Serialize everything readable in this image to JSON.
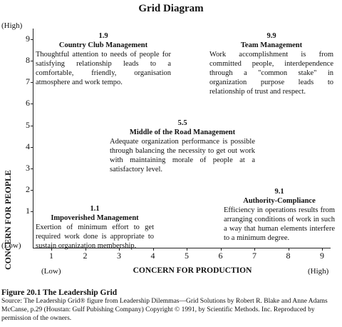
{
  "title": "Grid Diagram",
  "y_axis": {
    "label": "CONCERN FOR PEOPLE",
    "high": "(High)",
    "low": "(Low)",
    "ticks": [
      "1",
      "2",
      "3",
      "4",
      "5",
      "6",
      "7",
      "8",
      "9"
    ]
  },
  "x_axis": {
    "label": "CONCERN FOR PRODUCTION",
    "high": "(High)",
    "low": "(Low)",
    "ticks": [
      "1",
      "2",
      "3",
      "4",
      "5",
      "6",
      "7",
      "8",
      "9"
    ]
  },
  "styles": {
    "country_club": {
      "score": "1.9",
      "name": "Country Club Management",
      "description": "Thoughtful attention to needs of people for satisfying relationship leads to a comfortable, friendly, organisation atmosphere and work tempo."
    },
    "team": {
      "score": "9.9",
      "name": "Team Management",
      "description": "Work accomplishment is from committed people, interdependence through a \"common stake\" in organization purpose leads to relationship of trust and respect."
    },
    "middle": {
      "score": "5.5",
      "name": "Middle of the Road Management",
      "description": "Adequate organization performance is possible through balancing the necessity to get out work with maintaining morale of people at a satisfactory level."
    },
    "impoverished": {
      "score": "1.1",
      "name": "Impoverished Management",
      "description": "Exertion of minimum effort to get required work done is appropriate to sustain organization membership."
    },
    "authority": {
      "score": "9.1",
      "name": "Authority-Compliance",
      "description": "Efficiency in operations results from arranging conditions of work in such a way that human elements interfere to a minimum degree."
    }
  },
  "caption": {
    "title": "Figure 20.1 The Leadership Grid",
    "source": "Source: The Leadership Grid® figure from Leadership Dilemmas—Grid Solutions by Robert R. Blake and Anne Adams McCanse, p.29 (Houstan: Gulf Pubishing Company) Copyright © 1991, by Scientific Methods. Inc. Reproduced by permission of the owners."
  }
}
